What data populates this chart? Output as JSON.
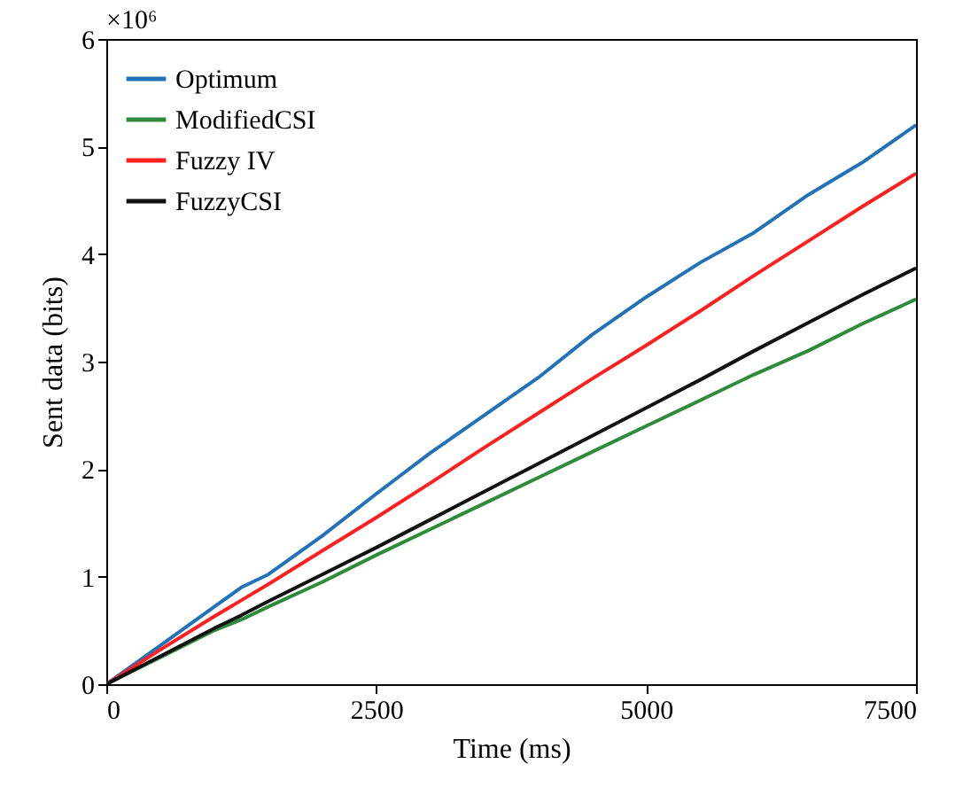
{
  "chart_data": {
    "type": "line",
    "xlabel": "Time (ms)",
    "ylabel": "Sent data (bits)",
    "annotations": [
      "×10⁶"
    ],
    "xlim": [
      0,
      7500
    ],
    "xticks": [
      0,
      2500,
      5000,
      7500
    ],
    "ylim": [
      0,
      6
    ],
    "yticks": [
      0,
      1,
      2,
      3,
      4,
      5,
      6
    ],
    "grid": false,
    "legend": "top left",
    "marker": "none",
    "line_style": "solid",
    "x": [
      0,
      500,
      1000,
      1250,
      1500,
      2000,
      2500,
      3000,
      3500,
      4000,
      4500,
      5000,
      5500,
      6000,
      6500,
      7000,
      7500
    ],
    "series": [
      {
        "name": "Optimum",
        "color": "#2272b8",
        "values": [
          0,
          0.36,
          0.72,
          0.9,
          1.02,
          1.38,
          1.77,
          2.15,
          2.5,
          2.85,
          3.25,
          3.6,
          3.92,
          4.2,
          4.55,
          4.85,
          5.2
        ]
      },
      {
        "name": "ModifiedCSI",
        "color": "#2e8b3a",
        "values": [
          0,
          0.25,
          0.5,
          0.6,
          0.72,
          0.95,
          1.2,
          1.44,
          1.68,
          1.92,
          2.16,
          2.4,
          2.64,
          2.88,
          3.1,
          3.35,
          3.58
        ]
      },
      {
        "name": "Fuzzy IV",
        "color": "#ff2020",
        "values": [
          0,
          0.32,
          0.63,
          0.78,
          0.93,
          1.24,
          1.55,
          1.87,
          2.2,
          2.52,
          2.84,
          3.15,
          3.47,
          3.8,
          4.12,
          4.44,
          4.75
        ]
      },
      {
        "name": "FuzzyCSI",
        "color": "#111111",
        "values": [
          0,
          0.26,
          0.52,
          0.64,
          0.77,
          1.02,
          1.27,
          1.53,
          1.79,
          2.05,
          2.31,
          2.57,
          2.83,
          3.1,
          3.36,
          3.62,
          3.87
        ]
      }
    ]
  }
}
